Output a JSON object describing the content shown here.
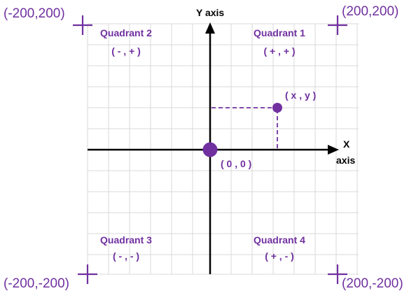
{
  "colors": {
    "accent": "#7030a0",
    "axis": "#000000",
    "grid": "#d9d9d9"
  },
  "axes": {
    "y_label": "Y axis",
    "x_label": "X",
    "x_label_2": "axis"
  },
  "corners": {
    "top_left": "(-200,200)",
    "top_right": "(200,200)",
    "bottom_left": "(-200,-200)",
    "bottom_right": "(200,-200)"
  },
  "quadrants": [
    {
      "name": "Quadrant 2",
      "signs": "( - , + )"
    },
    {
      "name": "Quadrant 1",
      "signs": "( + , + )"
    },
    {
      "name": "Quadrant 3",
      "signs": "( - , - )"
    },
    {
      "name": "Quadrant 4",
      "signs": "( + , - )"
    }
  ],
  "points": {
    "origin_label": "( 0 , 0 )",
    "sample_label": "( x , y )"
  }
}
